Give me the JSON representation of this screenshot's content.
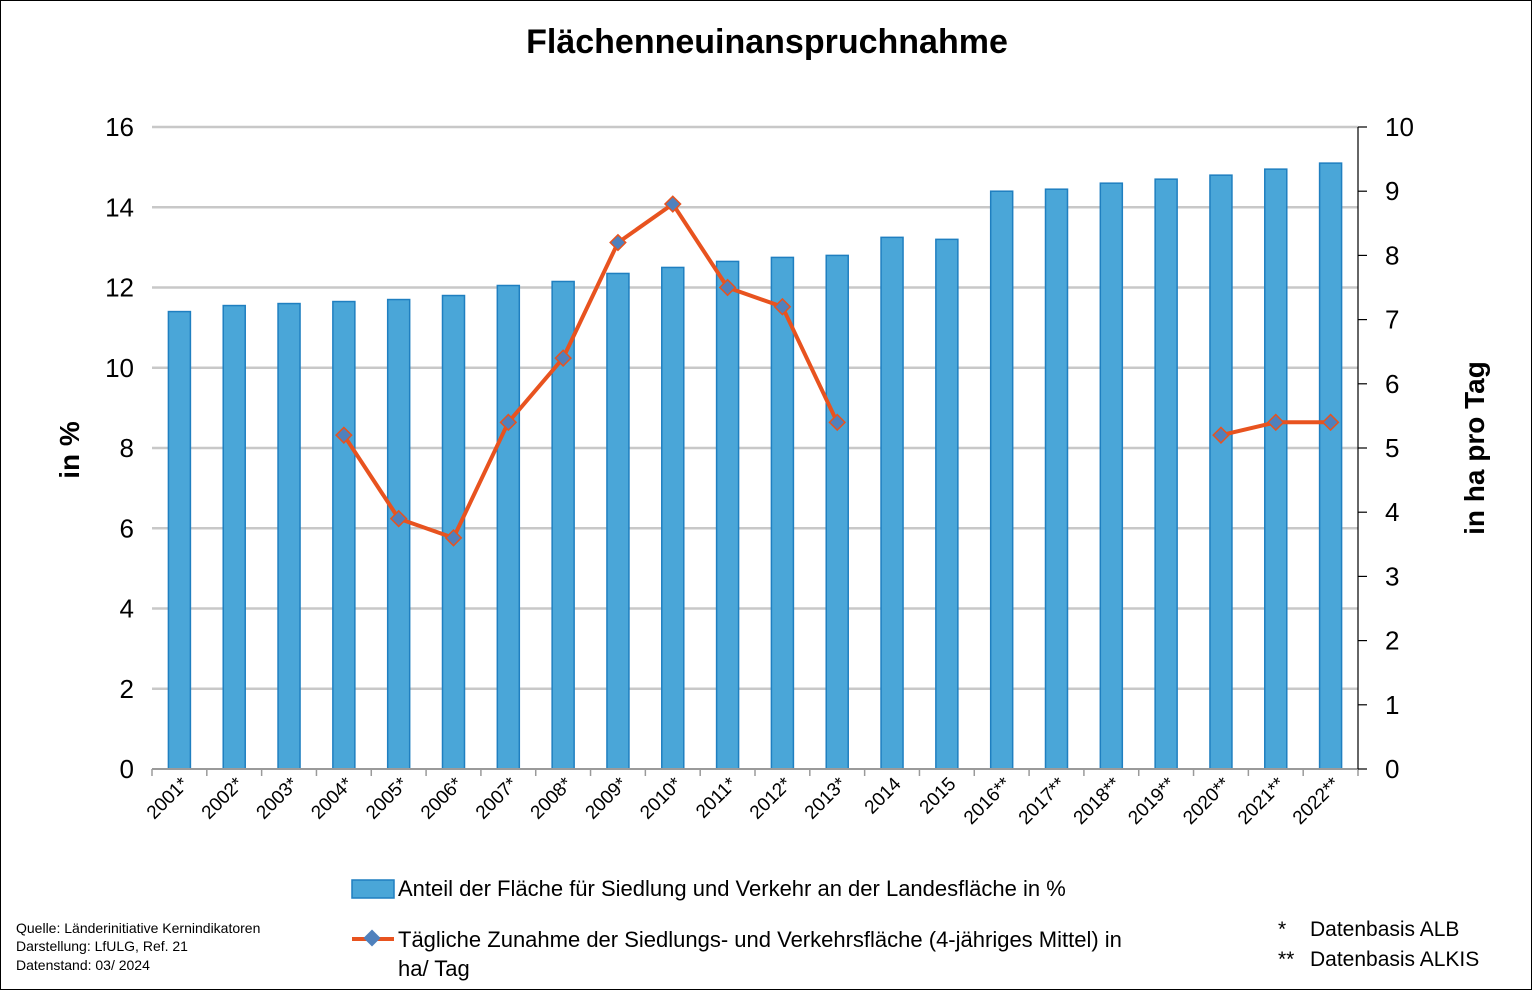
{
  "chart_data": {
    "type": "bar+line",
    "title": "Flächenneuinanspruchnahme",
    "categories": [
      "2001*",
      "2002*",
      "2003*",
      "2004*",
      "2005*",
      "2006*",
      "2007*",
      "2008*",
      "2009*",
      "2010*",
      "2011*",
      "2012*",
      "2013*",
      "2014",
      "2015",
      "2016**",
      "2017**",
      "2018**",
      "2019**",
      "2020**",
      "2021**",
      "2022**"
    ],
    "series": [
      {
        "name": "Anteil der Fläche für Siedlung und Verkehr an der Landesfläche in %",
        "type": "bar",
        "axis": "left",
        "color": "#4aa6d8",
        "values": [
          11.4,
          11.55,
          11.6,
          11.65,
          11.7,
          11.8,
          12.05,
          12.15,
          12.35,
          12.5,
          12.65,
          12.75,
          12.8,
          13.25,
          13.2,
          14.4,
          14.45,
          14.6,
          14.7,
          14.8,
          14.95,
          15.1
        ]
      },
      {
        "name": "Tägliche Zunahme der Siedlungs- und Verkehrsfläche (4-jähriges Mittel) in ha/ Tag",
        "type": "line",
        "axis": "right",
        "color": "#e8531f",
        "marker_color": "#4f81bd",
        "values": [
          null,
          null,
          null,
          5.2,
          3.9,
          3.6,
          5.4,
          6.4,
          8.2,
          8.8,
          7.5,
          7.2,
          5.4,
          null,
          null,
          null,
          null,
          null,
          null,
          5.2,
          5.4,
          5.4
        ]
      }
    ],
    "y_left": {
      "label": "in %",
      "range": [
        0,
        16
      ],
      "ticks": [
        "0",
        "2",
        "4",
        "6",
        "8",
        "10",
        "12",
        "14",
        "16"
      ]
    },
    "y_right": {
      "label": "in ha pro Tag",
      "range": [
        0,
        10
      ],
      "ticks": [
        "0",
        "1",
        "2",
        "3",
        "4",
        "5",
        "6",
        "7",
        "8",
        "9",
        "10"
      ]
    },
    "grid": true,
    "legend_position": "bottom"
  },
  "legend": {
    "bar_label_line1": "Anteil der Fläche für Siedlung und Verkehr an der Landesfläche in %",
    "line_label_line1": "Tägliche Zunahme der Siedlungs- und Verkehrsfläche (4-jähriges Mittel) in",
    "line_label_line2": "ha/ Tag"
  },
  "footer": {
    "source": "Quelle:  Länderinitiative  Kernindikatoren",
    "credit": "Darstellung:  LfULG, Ref. 21",
    "date": "Datenstand:  03/ 2024"
  },
  "basis": {
    "alb_mark": "*",
    "alb_text": "Datenbasis ALB",
    "alkis_mark": "**",
    "alkis_text": "Datenbasis ALKIS"
  }
}
